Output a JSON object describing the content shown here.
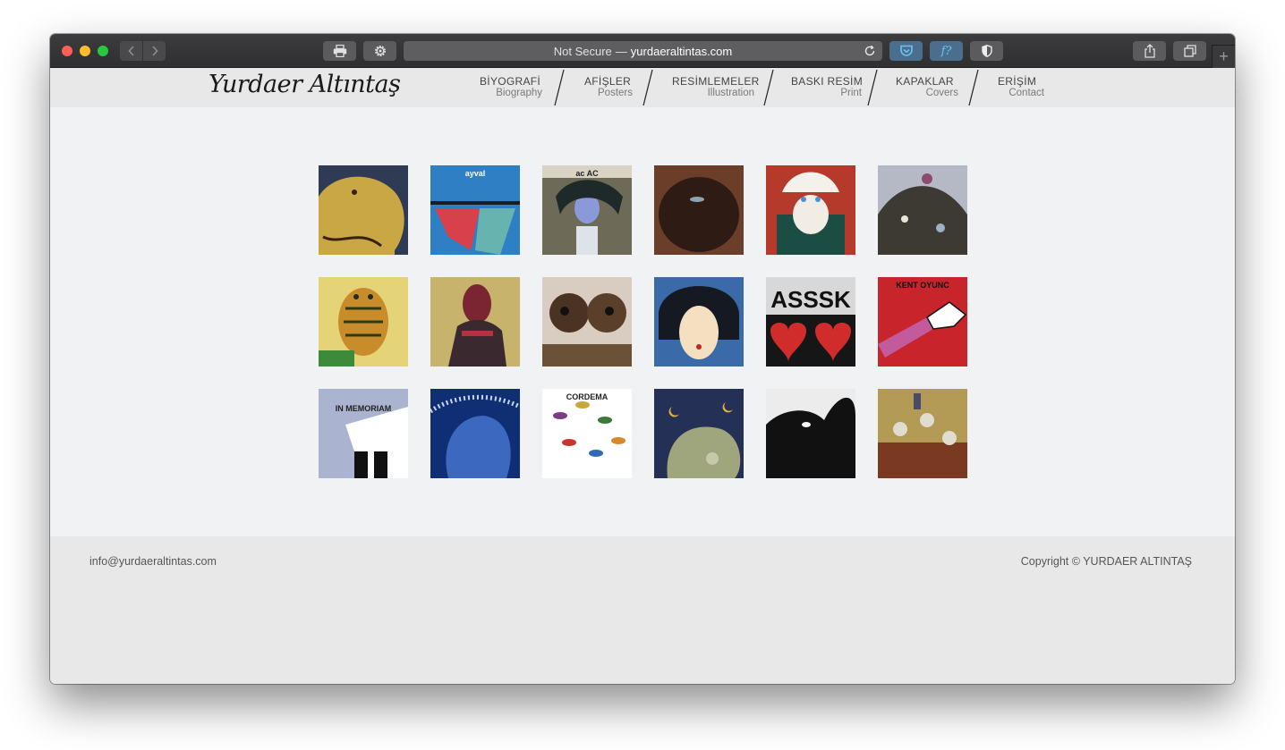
{
  "browser": {
    "address": {
      "security": "Not Secure",
      "separator": "—",
      "host": "yurdaeraltintas.com"
    },
    "toolbar_icons": [
      "back-icon",
      "forward-icon",
      "print-icon",
      "settings-icon",
      "reload-icon",
      "pocket-icon",
      "font-extension-icon",
      "privacy-shield-icon",
      "share-icon",
      "tabs-icon",
      "new-tab-icon"
    ],
    "ext_label": "f?",
    "new_tab_label": "+"
  },
  "site": {
    "logo": "Yurdaer Altıntaş",
    "nav": [
      {
        "tr": "BİYOGRAFİ",
        "en": "Biography"
      },
      {
        "tr": "AFİŞLER",
        "en": "Posters"
      },
      {
        "tr": "RESİMLEMELER",
        "en": "Illustration"
      },
      {
        "tr": "BASKI RESİM",
        "en": "Print"
      },
      {
        "tr": "KAPAKLAR",
        "en": "Covers"
      },
      {
        "tr": "ERİŞİM",
        "en": "Contact"
      }
    ],
    "gallery": [
      {
        "id": "lion-yellow",
        "bg": "#2f3a55",
        "main": "#c9a744",
        "text": ""
      },
      {
        "id": "ayvalik-poster",
        "bg": "#2f7fc4",
        "main": "#d8404c",
        "text": "ayval"
      },
      {
        "id": "girl-portrait",
        "bg": "#6d6a58",
        "main": "#8a9ad8",
        "text": "ac AC"
      },
      {
        "id": "dark-creature",
        "bg": "#6b3e2a",
        "main": "#2e1c14",
        "text": ""
      },
      {
        "id": "bearded-man",
        "bg": "#b53a2b",
        "main": "#f1ede4",
        "text": ""
      },
      {
        "id": "heap-collage",
        "bg": "#b5b9c6",
        "main": "#3d3a33",
        "text": ""
      },
      {
        "id": "tiger-cat",
        "bg": "#e4d477",
        "main": "#c98c2a",
        "text": ""
      },
      {
        "id": "fez-figure",
        "bg": "#c8b36d",
        "main": "#7a2531",
        "text": ""
      },
      {
        "id": "owls",
        "bg": "#d9ccc0",
        "main": "#4a3322",
        "text": ""
      },
      {
        "id": "geisha",
        "bg": "#3a6ba8",
        "main": "#f4e0c0",
        "text": ""
      },
      {
        "id": "hearts-poster",
        "bg": "#161616",
        "main": "#cf2c2b",
        "text": "ASSSK"
      },
      {
        "id": "kent-oyunculari",
        "bg": "#c7242b",
        "main": "#ffffff",
        "text": "KENT OYUNC"
      },
      {
        "id": "in-memoriam",
        "bg": "#aab3cf",
        "main": "#ffffff",
        "text": "IN MEMORIAM"
      },
      {
        "id": "blue-face",
        "bg": "#0f2e73",
        "main": "#3c68c0",
        "text": ""
      },
      {
        "id": "cinema-chairs",
        "bg": "#ffffff",
        "main": "#c8352a",
        "text": "CORDEMA"
      },
      {
        "id": "moon-night",
        "bg": "#253056",
        "main": "#9fa57d",
        "text": ""
      },
      {
        "id": "black-horse",
        "bg": "#ececec",
        "main": "#111111",
        "text": ""
      },
      {
        "id": "ottoman-crowd",
        "bg": "#b39b55",
        "main": "#7a3a22",
        "text": ""
      }
    ],
    "footer": {
      "email": "info@yurdaeraltintas.com",
      "copyright": "Copyright © YURDAER ALTINTAŞ"
    }
  }
}
